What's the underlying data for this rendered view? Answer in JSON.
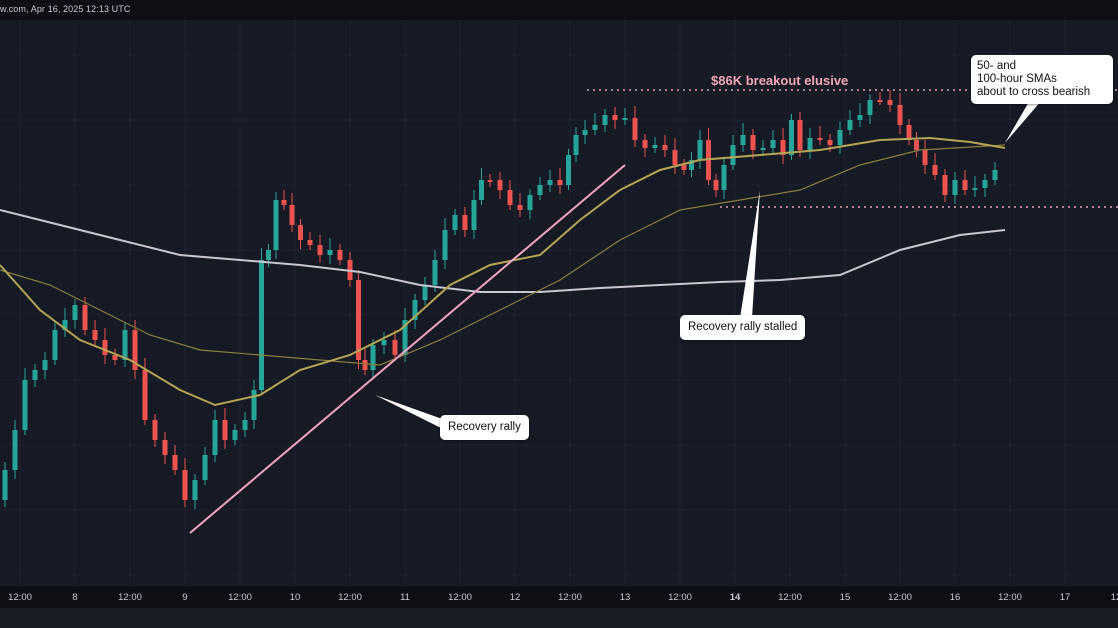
{
  "source": "w.com, Apr 16, 2025 12:13 UTC",
  "annotations": {
    "breakout": "$86K breakout elusive",
    "recovery_rally": "Recovery rally",
    "rally_stalled": "Recovery rally stalled",
    "sma_cross_l1": "50- and",
    "sma_cross_l2": "100-hour SMAs",
    "sma_cross_l3": "about to cross bearish"
  },
  "colors": {
    "background": "#161a25",
    "bullish": "#26a69a",
    "bearish": "#ef5350",
    "sma50": "#b4a554",
    "sma100": "#8a7f3c",
    "sma200": "#c7c7d0",
    "trendline": "#f3a3c2",
    "levels": "#e6a0b4"
  },
  "chart_data": {
    "type": "candlestick",
    "timeframe": "hourly",
    "x_ticks": [
      "12:00",
      "8",
      "12:00",
      "9",
      "12:00",
      "10",
      "12:00",
      "11",
      "12:00",
      "12",
      "12:00",
      "13",
      "12:00",
      "14",
      "12:00",
      "15",
      "12:00",
      "16",
      "12:00",
      "17",
      "12:0"
    ],
    "x_ticks_bold": [
      13
    ],
    "grid": true,
    "series": [
      {
        "type": "candlestick",
        "ohlc_relative_path": [
          [
            0.0,
            0.8
          ],
          [
            0.02,
            0.6
          ],
          [
            0.04,
            0.45
          ],
          [
            0.06,
            0.4
          ],
          [
            0.08,
            0.55
          ],
          [
            0.1,
            0.48
          ],
          [
            0.12,
            0.62
          ],
          [
            0.14,
            0.66
          ],
          [
            0.16,
            0.7
          ],
          [
            0.18,
            0.78
          ],
          [
            0.2,
            0.6
          ],
          [
            0.22,
            0.35
          ],
          [
            0.24,
            0.32
          ],
          [
            0.26,
            0.4
          ],
          [
            0.28,
            0.42
          ],
          [
            0.3,
            0.45
          ],
          [
            0.32,
            0.55
          ],
          [
            0.34,
            0.5
          ],
          [
            0.36,
            0.52
          ],
          [
            0.38,
            0.6
          ],
          [
            0.4,
            0.78
          ],
          [
            0.42,
            0.84
          ],
          [
            0.44,
            0.88
          ],
          [
            0.46,
            0.93
          ],
          [
            0.48,
            0.85
          ],
          [
            0.5,
            0.78
          ],
          [
            0.52,
            0.7
          ],
          [
            0.54,
            0.65
          ],
          [
            0.56,
            0.4
          ],
          [
            0.58,
            0.35
          ]
        ]
      }
    ],
    "moving_averages": [
      {
        "period": 50,
        "color": "#b4a554"
      },
      {
        "period": 100,
        "color": "#8a7f3c"
      },
      {
        "period": 200,
        "color": "#c7c7d0"
      }
    ],
    "levels": [
      {
        "label": "$86K breakout elusive",
        "style": "dotted",
        "position": "top"
      },
      {
        "style": "dotted",
        "position": "support"
      }
    ]
  }
}
